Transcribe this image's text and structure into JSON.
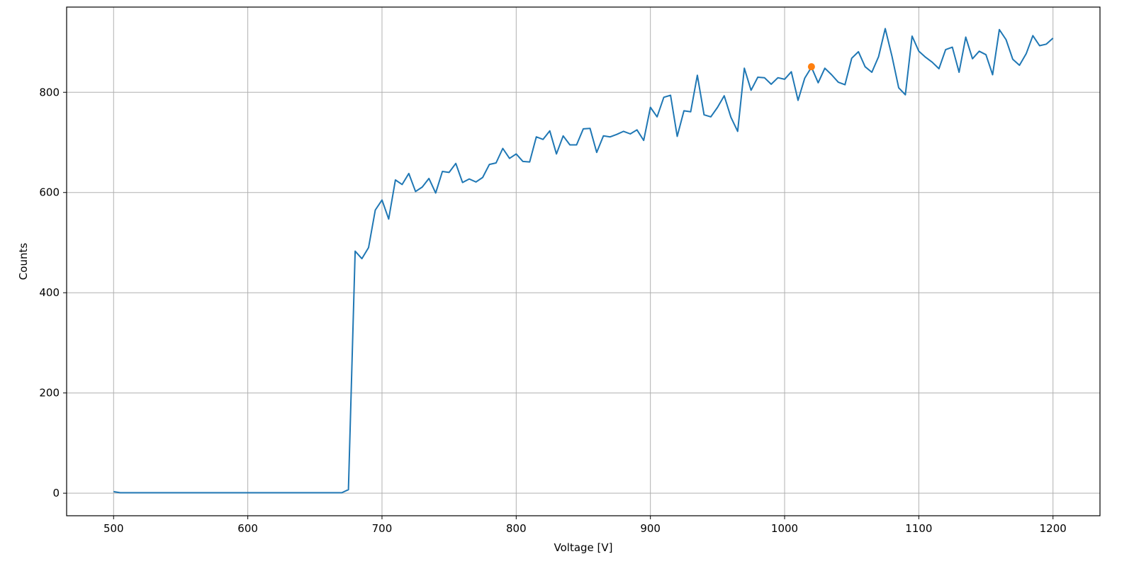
{
  "chart_data": {
    "type": "line",
    "xlabel": "Voltage [V]",
    "ylabel": "Counts",
    "xlim": [
      465,
      1235
    ],
    "ylim": [
      -45,
      970
    ],
    "xticks": [
      500,
      600,
      700,
      800,
      900,
      1000,
      1100,
      1200
    ],
    "yticks": [
      0,
      200,
      400,
      600,
      800
    ],
    "grid": true,
    "series": [
      {
        "color": "#1f77b4",
        "x": [
          500,
          505,
          510,
          515,
          520,
          525,
          530,
          535,
          540,
          545,
          550,
          555,
          560,
          565,
          570,
          575,
          580,
          585,
          590,
          595,
          600,
          605,
          610,
          615,
          620,
          625,
          630,
          635,
          640,
          645,
          650,
          655,
          660,
          665,
          670,
          675,
          680,
          685,
          690,
          695,
          700,
          705,
          710,
          715,
          720,
          725,
          730,
          735,
          740,
          745,
          750,
          755,
          760,
          765,
          770,
          775,
          780,
          785,
          790,
          795,
          800,
          805,
          810,
          815,
          820,
          825,
          830,
          835,
          840,
          845,
          850,
          855,
          860,
          865,
          870,
          875,
          880,
          885,
          890,
          895,
          900,
          905,
          910,
          915,
          920,
          925,
          930,
          935,
          940,
          945,
          950,
          955,
          960,
          965,
          970,
          975,
          980,
          985,
          990,
          995,
          1000,
          1005,
          1010,
          1015,
          1020,
          1025,
          1030,
          1035,
          1040,
          1045,
          1050,
          1055,
          1060,
          1065,
          1070,
          1075,
          1080,
          1085,
          1090,
          1095,
          1100,
          1105,
          1110,
          1115,
          1120,
          1125,
          1130,
          1135,
          1140,
          1145,
          1150,
          1155,
          1160,
          1165,
          1170,
          1175,
          1180,
          1185,
          1190,
          1195,
          1200
        ],
        "y": [
          3,
          1,
          1,
          1,
          1,
          1,
          1,
          1,
          1,
          1,
          1,
          1,
          1,
          1,
          1,
          1,
          1,
          1,
          1,
          1,
          1,
          1,
          1,
          1,
          1,
          1,
          1,
          1,
          1,
          1,
          1,
          1,
          1,
          1,
          1,
          7,
          483,
          468,
          490,
          565,
          585,
          547,
          625,
          616,
          638,
          602,
          611,
          628,
          599,
          642,
          640,
          658,
          620,
          627,
          621,
          630,
          656,
          659,
          688,
          668,
          677,
          662,
          661,
          711,
          706,
          723,
          677,
          713,
          695,
          695,
          727,
          728,
          680,
          713,
          711,
          716,
          722,
          717,
          725,
          704,
          770,
          751,
          790,
          794,
          712,
          763,
          761,
          834,
          755,
          751,
          770,
          793,
          750,
          722,
          848,
          804,
          830,
          829,
          816,
          829,
          826,
          841,
          784,
          828,
          850,
          819,
          848,
          835,
          820,
          815,
          868,
          881,
          851,
          840,
          871,
          927,
          872,
          809,
          795,
          912,
          882,
          870,
          860,
          847,
          885,
          890,
          840,
          910,
          867,
          882,
          875,
          835,
          925,
          905,
          866,
          854,
          877,
          913,
          893,
          896,
          908
        ]
      },
      {
        "color": "#ff7f0e",
        "marker": "circle",
        "x": [
          1020
        ],
        "y": [
          851
        ]
      }
    ]
  }
}
